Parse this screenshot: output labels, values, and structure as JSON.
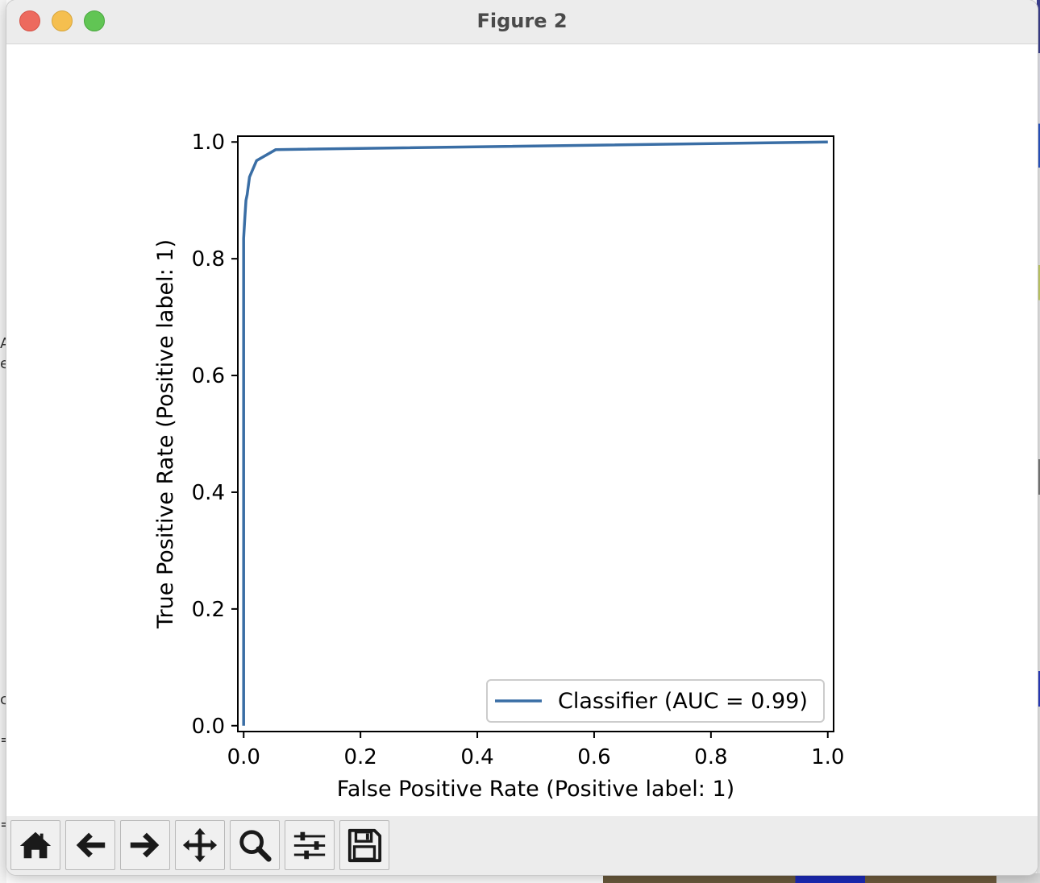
{
  "window": {
    "title": "Figure 2"
  },
  "toolbar": {
    "buttons": [
      {
        "name": "home",
        "icon": "home-icon"
      },
      {
        "name": "back",
        "icon": "arrow-left-icon"
      },
      {
        "name": "forward",
        "icon": "arrow-right-icon"
      },
      {
        "name": "pan",
        "icon": "move-icon"
      },
      {
        "name": "zoom",
        "icon": "magnifier-icon"
      },
      {
        "name": "configure-subplots",
        "icon": "sliders-icon"
      },
      {
        "name": "save",
        "icon": "floppy-disk-icon"
      }
    ]
  },
  "chart_data": {
    "type": "line",
    "title": "",
    "xlabel": "False Positive Rate (Positive label: 1)",
    "ylabel": "True Positive Rate (Positive label: 1)",
    "xlim": [
      -0.01,
      1.01
    ],
    "ylim": [
      -0.01,
      1.01
    ],
    "xticks": [
      "0.0",
      "0.2",
      "0.4",
      "0.6",
      "0.8",
      "1.0"
    ],
    "yticks": [
      "0.0",
      "0.2",
      "0.4",
      "0.6",
      "0.8",
      "1.0"
    ],
    "grid": false,
    "legend_position": "lower-right",
    "series": [
      {
        "name": "Classifier (AUC = 0.99)",
        "color": "#3a6ea5",
        "x": [
          0.0,
          0.0,
          0.002,
          0.004,
          0.006,
          0.01,
          0.022,
          0.055,
          1.0
        ],
        "y": [
          0.0,
          0.835,
          0.87,
          0.9,
          0.91,
          0.94,
          0.968,
          0.987,
          1.0
        ]
      }
    ]
  }
}
